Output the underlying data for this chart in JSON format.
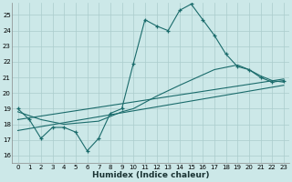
{
  "title": "",
  "xlabel": "Humidex (Indice chaleur)",
  "bg_color": "#cce8e8",
  "grid_color": "#aacccc",
  "line_color": "#1a6b6b",
  "xlim": [
    -0.5,
    23.5
  ],
  "ylim": [
    15.5,
    25.8
  ],
  "yticks": [
    16,
    17,
    18,
    19,
    20,
    21,
    22,
    23,
    24,
    25
  ],
  "xticks": [
    0,
    1,
    2,
    3,
    4,
    5,
    6,
    7,
    8,
    9,
    10,
    11,
    12,
    13,
    14,
    15,
    16,
    17,
    18,
    19,
    20,
    21,
    22,
    23
  ],
  "line1_x": [
    0,
    1,
    2,
    3,
    4,
    5,
    6,
    7,
    8,
    9,
    10,
    11,
    12,
    13,
    14,
    15,
    16,
    17,
    18,
    19,
    20,
    21,
    22,
    23
  ],
  "line1_y": [
    19.0,
    18.3,
    17.1,
    17.8,
    17.8,
    17.5,
    16.3,
    17.1,
    18.7,
    19.0,
    21.9,
    24.7,
    24.3,
    24.0,
    25.3,
    25.7,
    24.7,
    23.7,
    22.5,
    21.7,
    21.5,
    21.0,
    20.7,
    20.8
  ],
  "line2_x": [
    0,
    23
  ],
  "line2_y": [
    18.3,
    20.9
  ],
  "line3_x": [
    0,
    23
  ],
  "line3_y": [
    17.6,
    20.5
  ],
  "line4_x": [
    0,
    2,
    4,
    7,
    9,
    10,
    12,
    14,
    17,
    19,
    20,
    21,
    22,
    23
  ],
  "line4_y": [
    18.8,
    18.3,
    18.0,
    18.2,
    18.8,
    19.0,
    19.8,
    20.5,
    21.5,
    21.8,
    21.5,
    21.1,
    20.8,
    20.7
  ]
}
